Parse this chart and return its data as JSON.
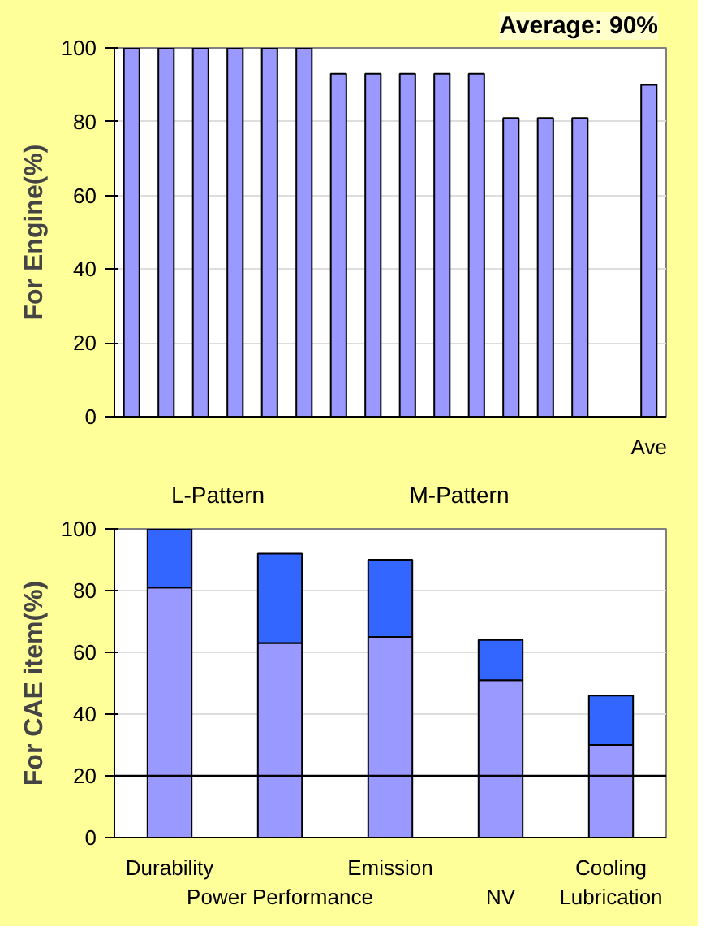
{
  "chart_data": [
    {
      "type": "bar",
      "ylabel": "For Engine(%)",
      "categories": [
        null,
        null,
        null,
        null,
        null,
        null,
        null,
        null,
        null,
        null,
        null,
        null,
        null,
        null,
        null,
        "Ave"
      ],
      "series": [
        {
          "color": "#9999ff",
          "values": [
            100,
            100,
            100,
            100,
            100,
            100,
            93,
            93,
            93,
            93,
            93,
            81,
            81,
            81,
            null,
            90
          ]
        }
      ],
      "ylim": [
        0,
        100
      ],
      "yticks": [
        0,
        20,
        40,
        60,
        80,
        100
      ],
      "grid": "y",
      "annotations": [
        "Average: 90%",
        "L-Pattern",
        "M-Pattern"
      ]
    },
    {
      "type": "bar",
      "ylabel": "For CAE item(%)",
      "stacked": true,
      "categories": [
        "Durability",
        "Power Performance",
        "Emission",
        "NV",
        "Cooling Lubrication"
      ],
      "series": [
        {
          "color": "#9999ff",
          "values": [
            81,
            63,
            65,
            51,
            30
          ]
        },
        {
          "color": "#3366ff",
          "values": [
            19,
            29,
            25,
            13,
            16
          ]
        }
      ],
      "ylim": [
        0,
        100
      ],
      "yticks": [
        0,
        20,
        40,
        60,
        80,
        100
      ],
      "grid": "y",
      "ref_lines": [
        {
          "axis": "y",
          "value": 20,
          "color": "#000000"
        }
      ]
    }
  ]
}
